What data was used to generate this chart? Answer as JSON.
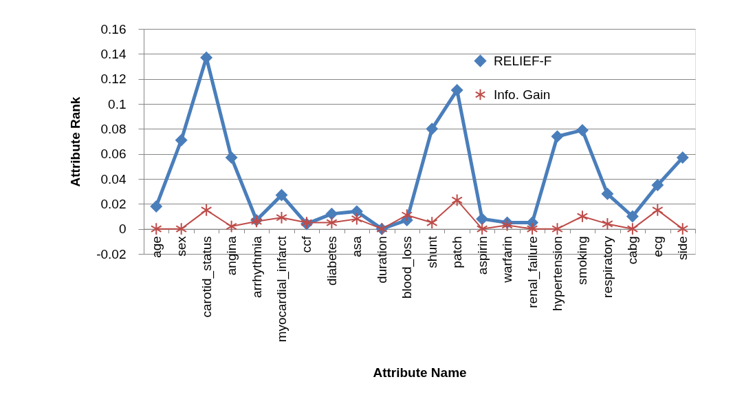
{
  "chart_data": {
    "type": "line",
    "xlabel": "Attribute Name",
    "ylabel": "Attribute Rank",
    "categories": [
      "age",
      "sex",
      "carotid_status",
      "angina",
      "arrhythmia",
      "myocardial_infarct",
      "ccf",
      "diabetes",
      "asa",
      "duration",
      "blood_loss",
      "shunt",
      "patch",
      "aspirin",
      "warfarin",
      "renal_failure",
      "hypertension",
      "smoking",
      "respiratory",
      "cabg",
      "ecg",
      "side"
    ],
    "series": [
      {
        "name": "RELIEF-F",
        "color": "#4a7ebb",
        "marker": "diamond",
        "values": [
          0.018,
          0.071,
          0.137,
          0.057,
          0.007,
          0.027,
          0.004,
          0.012,
          0.014,
          0,
          0.007,
          0.08,
          0.111,
          0.008,
          0.005,
          0.005,
          0.074,
          0.079,
          0.028,
          0.01,
          0.035,
          0.057
        ]
      },
      {
        "name": "Info. Gain",
        "color": "#be4b48",
        "marker": "cross",
        "values": [
          0,
          0,
          0.015,
          0.002,
          0.006,
          0.009,
          0.005,
          0.005,
          0.008,
          0,
          0.011,
          0.005,
          0.023,
          0,
          0.003,
          0,
          0,
          0.01,
          0.004,
          0,
          0.015,
          0
        ]
      }
    ],
    "ylim": [
      -0.02,
      0.16
    ],
    "yticks": [
      -0.02,
      0,
      0.02,
      0.04,
      0.06,
      0.08,
      0.1,
      0.12,
      0.14,
      0.16
    ],
    "grid": "y",
    "legend": "top right",
    "line_style": "solid"
  }
}
